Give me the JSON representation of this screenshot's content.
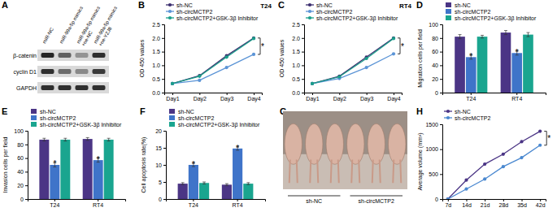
{
  "chart_data": [
    {
      "panel": "A",
      "type": "blot",
      "lanes": [
        [
          "miR-NC"
        ],
        [
          "miR-99a-5p mimics"
        ],
        [
          "miR-99a-5p mimics",
          "+oe-NC"
        ],
        [
          "miR-99a-5p mimics",
          "+oe-YZJ8"
        ]
      ],
      "rows": [
        "β-catenin",
        "cyclin D1",
        "GAPDH"
      ],
      "intensities": [
        [
          0.9,
          0.6,
          0.35,
          0.85
        ],
        [
          0.85,
          0.55,
          0.4,
          0.8
        ],
        [
          0.85,
          0.85,
          0.85,
          0.85
        ]
      ]
    },
    {
      "panel": "B",
      "type": "line",
      "title": "T24",
      "y_label": "OD 450 values",
      "categories": [
        "Day1",
        "Day2",
        "Day3",
        "Day4"
      ],
      "ylim": [
        0,
        2.5
      ],
      "yticks": [
        {
          "value": 0,
          "label": "0.0"
        },
        0.5,
        {
          "value": 1,
          "label": "1.0"
        },
        1.5,
        {
          "value": 2,
          "label": "2.0"
        },
        2.5
      ],
      "legend": "top-left",
      "marker": "circle",
      "series": [
        {
          "name": "sh-NC",
          "color": "#3b2d6e",
          "values": [
            0.33,
            0.62,
            1.35,
            2.0
          ]
        },
        {
          "name": "sh-circMCTP2",
          "color": "#5b94d6",
          "values": [
            0.33,
            0.45,
            0.92,
            1.4
          ]
        },
        {
          "name": "sh-circMCTP2+GSK-3β Inhibitor",
          "color": "#1a9e8a",
          "values": [
            0.33,
            0.6,
            1.3,
            1.98
          ]
        }
      ],
      "annotations": [
        {
          "text": "*",
          "x": "Day4",
          "between": [
            "sh-NC",
            "sh-circMCTP2"
          ]
        }
      ]
    },
    {
      "panel": "C",
      "type": "line",
      "title": "RT4",
      "y_label": "OD 450 values",
      "categories": [
        "Day1",
        "Day2",
        "Day3",
        "Day4"
      ],
      "ylim": [
        0,
        2.5
      ],
      "yticks": [
        {
          "value": 0,
          "label": "0.0"
        },
        0.5,
        {
          "value": 1,
          "label": "1.0"
        },
        1.5,
        {
          "value": 2,
          "label": "2.0"
        },
        2.5
      ],
      "legend": "top-left",
      "marker": "circle",
      "series": [
        {
          "name": "sh-NC",
          "color": "#3b2d6e",
          "values": [
            0.33,
            0.6,
            1.3,
            2.0
          ]
        },
        {
          "name": "sh-circMCTP2",
          "color": "#5b94d6",
          "values": [
            0.33,
            0.52,
            0.92,
            1.42
          ]
        },
        {
          "name": "sh-circMCTP2+GSK-3β Inhibitor",
          "color": "#1a9e8a",
          "values": [
            0.33,
            0.58,
            1.25,
            1.98
          ]
        }
      ],
      "annotations": [
        {
          "text": "*",
          "x": "Day4",
          "between": [
            "sh-NC",
            "sh-circMCTP2"
          ]
        }
      ]
    },
    {
      "panel": "D",
      "type": "bar",
      "y_label": "Migration cells per field",
      "categories": [
        "T24",
        "RT4"
      ],
      "ylim": [
        0,
        100
      ],
      "yticks": [
        0,
        20,
        40,
        60,
        80,
        100
      ],
      "legend": "top-left",
      "series": [
        {
          "name": "sh-NC",
          "color": "#4b3585",
          "values": [
            82,
            88
          ],
          "errors": [
            3,
            3
          ]
        },
        {
          "name": "sh-circMCTP2",
          "color": "#3f74c9",
          "values": [
            52,
            58
          ],
          "errors": [
            3,
            3
          ]
        },
        {
          "name": "sh-circMCTP2+GSK-3β Inhibitor",
          "color": "#1aa58f",
          "values": [
            82,
            85
          ],
          "errors": [
            2,
            3
          ]
        }
      ],
      "annotations": [
        {
          "text": "*",
          "series": "sh-circMCTP2",
          "category": "T24"
        },
        {
          "text": "*",
          "series": "sh-circMCTP2",
          "category": "RT4"
        }
      ]
    },
    {
      "panel": "E",
      "type": "bar",
      "y_label": "Invasion cells per field",
      "categories": [
        "T24",
        "RT4"
      ],
      "ylim": [
        0,
        100
      ],
      "yticks": [
        0,
        20,
        40,
        60,
        80,
        100
      ],
      "legend": "top-left",
      "series": [
        {
          "name": "sh-NC",
          "color": "#4b3585",
          "values": [
            87,
            88
          ],
          "errors": [
            2,
            2
          ]
        },
        {
          "name": "sh-circMCTP2",
          "color": "#3f74c9",
          "values": [
            50,
            57
          ],
          "errors": [
            3,
            3
          ]
        },
        {
          "name": "sh-circMCTP2+GSK-3β Inhibitor",
          "color": "#1aa58f",
          "values": [
            87,
            87
          ],
          "errors": [
            2,
            2
          ]
        }
      ],
      "annotations": [
        {
          "text": "*",
          "series": "sh-circMCTP2",
          "category": "T24"
        },
        {
          "text": "*",
          "series": "sh-circMCTP2",
          "category": "RT4"
        }
      ]
    },
    {
      "panel": "F",
      "type": "bar",
      "y_label": "Cell apoptosis rate(%)",
      "categories": [
        "T24",
        "RT4"
      ],
      "ylim": [
        0,
        20
      ],
      "yticks": [
        0,
        5,
        10,
        15,
        20
      ],
      "legend": "top-left",
      "series": [
        {
          "name": "sh-NC",
          "color": "#4b3585",
          "values": [
            4.5,
            4.2
          ],
          "errors": [
            0.3,
            0.3
          ]
        },
        {
          "name": "sh-circMCTP2",
          "color": "#3f74c9",
          "values": [
            10.0,
            14.8
          ],
          "errors": [
            0.5,
            0.5
          ]
        },
        {
          "name": "sh-circMCTP2+GSK-3β Inhibitor",
          "color": "#1aa58f",
          "values": [
            4.7,
            4.5
          ],
          "errors": [
            0.3,
            0.3
          ]
        }
      ],
      "annotations": [
        {
          "text": "*",
          "series": "sh-circMCTP2",
          "category": "T24"
        },
        {
          "text": "*",
          "series": "sh-circMCTP2",
          "category": "RT4"
        }
      ]
    },
    {
      "panel": "G",
      "type": "photo",
      "groups": [
        "sh-NC",
        "sh-circMCTP2"
      ]
    },
    {
      "panel": "H",
      "type": "line",
      "y_label": "Average volume (mm³)",
      "categories": [
        "7d",
        "14d",
        "21d",
        "28d",
        "35d",
        "42d"
      ],
      "ylim": [
        0,
        1500
      ],
      "yticks": [
        0,
        500,
        1000,
        1500
      ],
      "legend": "top-left",
      "marker": "circle",
      "series": [
        {
          "name": "sh-NC",
          "color": "#4b3585",
          "values": [
            0,
            380,
            700,
            900,
            1150,
            1360
          ]
        },
        {
          "name": "sh-circMCTP2",
          "color": "#4a88d0",
          "values": [
            0,
            200,
            400,
            650,
            830,
            1080
          ]
        }
      ],
      "annotations": [
        {
          "text": "*",
          "x": "42d",
          "between": [
            "sh-NC",
            "sh-circMCTP2"
          ]
        }
      ]
    }
  ]
}
